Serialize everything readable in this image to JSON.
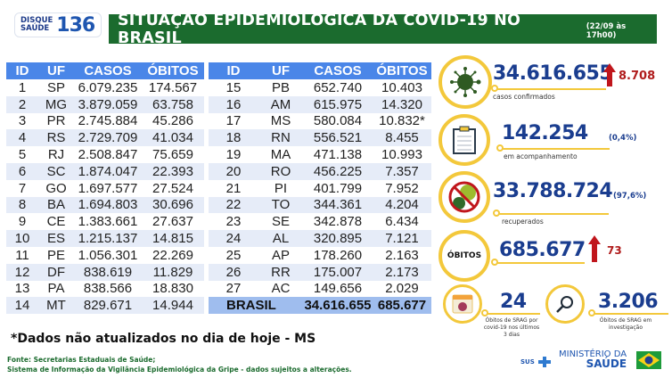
{
  "header": {
    "logo_top": "DISQUE",
    "logo_bottom": "SAÚDE",
    "logo_number": "136",
    "title": "SITUAÇÃO EPIDEMIOLÓGICA DA COVID-19 NO BRASIL",
    "timestamp": "(22/09 às 17h00)"
  },
  "table": {
    "columns": [
      "ID",
      "UF",
      "CASOS",
      "ÓBITOS"
    ],
    "left_rows": [
      [
        "1",
        "SP",
        "6.079.235",
        "174.567"
      ],
      [
        "2",
        "MG",
        "3.879.059",
        "63.758"
      ],
      [
        "3",
        "PR",
        "2.745.884",
        "45.286"
      ],
      [
        "4",
        "RS",
        "2.729.709",
        "41.034"
      ],
      [
        "5",
        "RJ",
        "2.508.847",
        "75.659"
      ],
      [
        "6",
        "SC",
        "1.874.047",
        "22.393"
      ],
      [
        "7",
        "GO",
        "1.697.577",
        "27.524"
      ],
      [
        "8",
        "BA",
        "1.694.803",
        "30.696"
      ],
      [
        "9",
        "CE",
        "1.383.661",
        "27.637"
      ],
      [
        "10",
        "ES",
        "1.215.137",
        "14.815"
      ],
      [
        "11",
        "PE",
        "1.056.301",
        "22.269"
      ],
      [
        "12",
        "DF",
        "838.619",
        "11.829"
      ],
      [
        "13",
        "PA",
        "838.566",
        "18.830"
      ],
      [
        "14",
        "MT",
        "829.671",
        "14.944"
      ]
    ],
    "right_rows": [
      [
        "15",
        "PB",
        "652.740",
        "10.403"
      ],
      [
        "16",
        "AM",
        "615.975",
        "14.320"
      ],
      [
        "17",
        "MS",
        "580.084",
        "10.832*"
      ],
      [
        "18",
        "RN",
        "556.521",
        "8.455"
      ],
      [
        "19",
        "MA",
        "471.138",
        "10.993"
      ],
      [
        "20",
        "RO",
        "456.225",
        "7.357"
      ],
      [
        "21",
        "PI",
        "401.799",
        "7.952"
      ],
      [
        "22",
        "TO",
        "344.361",
        "4.204"
      ],
      [
        "23",
        "SE",
        "342.878",
        "6.434"
      ],
      [
        "24",
        "AL",
        "320.895",
        "7.121"
      ],
      [
        "25",
        "AP",
        "178.260",
        "2.163"
      ],
      [
        "26",
        "RR",
        "175.007",
        "2.173"
      ],
      [
        "27",
        "AC",
        "149.656",
        "2.029"
      ]
    ],
    "total": {
      "label": "BRASIL",
      "casos": "34.616.655",
      "obitos": "685.677"
    }
  },
  "stats": {
    "confirmed": {
      "value": "34.616.655",
      "increase": "8.708",
      "label": "casos confirmados",
      "icon": "virus-icon"
    },
    "monitoring": {
      "value": "142.254",
      "percent": "(0,4%)",
      "label": "em acompanhamento",
      "icon": "clipboard-icon"
    },
    "recovered": {
      "value": "33.788.724",
      "percent": "(97,6%)",
      "label": "recuperados",
      "icon": "no-virus-icon"
    },
    "deaths": {
      "badge": "ÓBITOS",
      "value": "685.677",
      "increase": "73"
    },
    "srag_recent": {
      "value": "24",
      "label_1": "Óbitos de SRAG por",
      "label_2": "covid-19 nos últimos",
      "label_3": "3 dias",
      "icon_number": "3"
    },
    "srag_investigation": {
      "value": "3.206",
      "label_1": "Óbitos de SRAG em",
      "label_2": "investigação"
    }
  },
  "footer": {
    "note": "*Dados não atualizados no dia de hoje - MS",
    "source_1": "Fonte: Secretarias Estaduais de Saúde;",
    "source_2": "Sistema de Informação da Vigilância Epidemiológica da Gripe - dados sujeitos a alterações.",
    "sus": "SUS",
    "ministry_1": "MINISTÉRIO DA",
    "ministry_2": "SAÚDE"
  },
  "colors": {
    "title_green": "#1b6b2e",
    "table_header_blue": "#4a86e8",
    "number_blue": "#1a3d8f",
    "ring_yellow": "#f3c83b",
    "increase_red": "#b01c1c"
  }
}
